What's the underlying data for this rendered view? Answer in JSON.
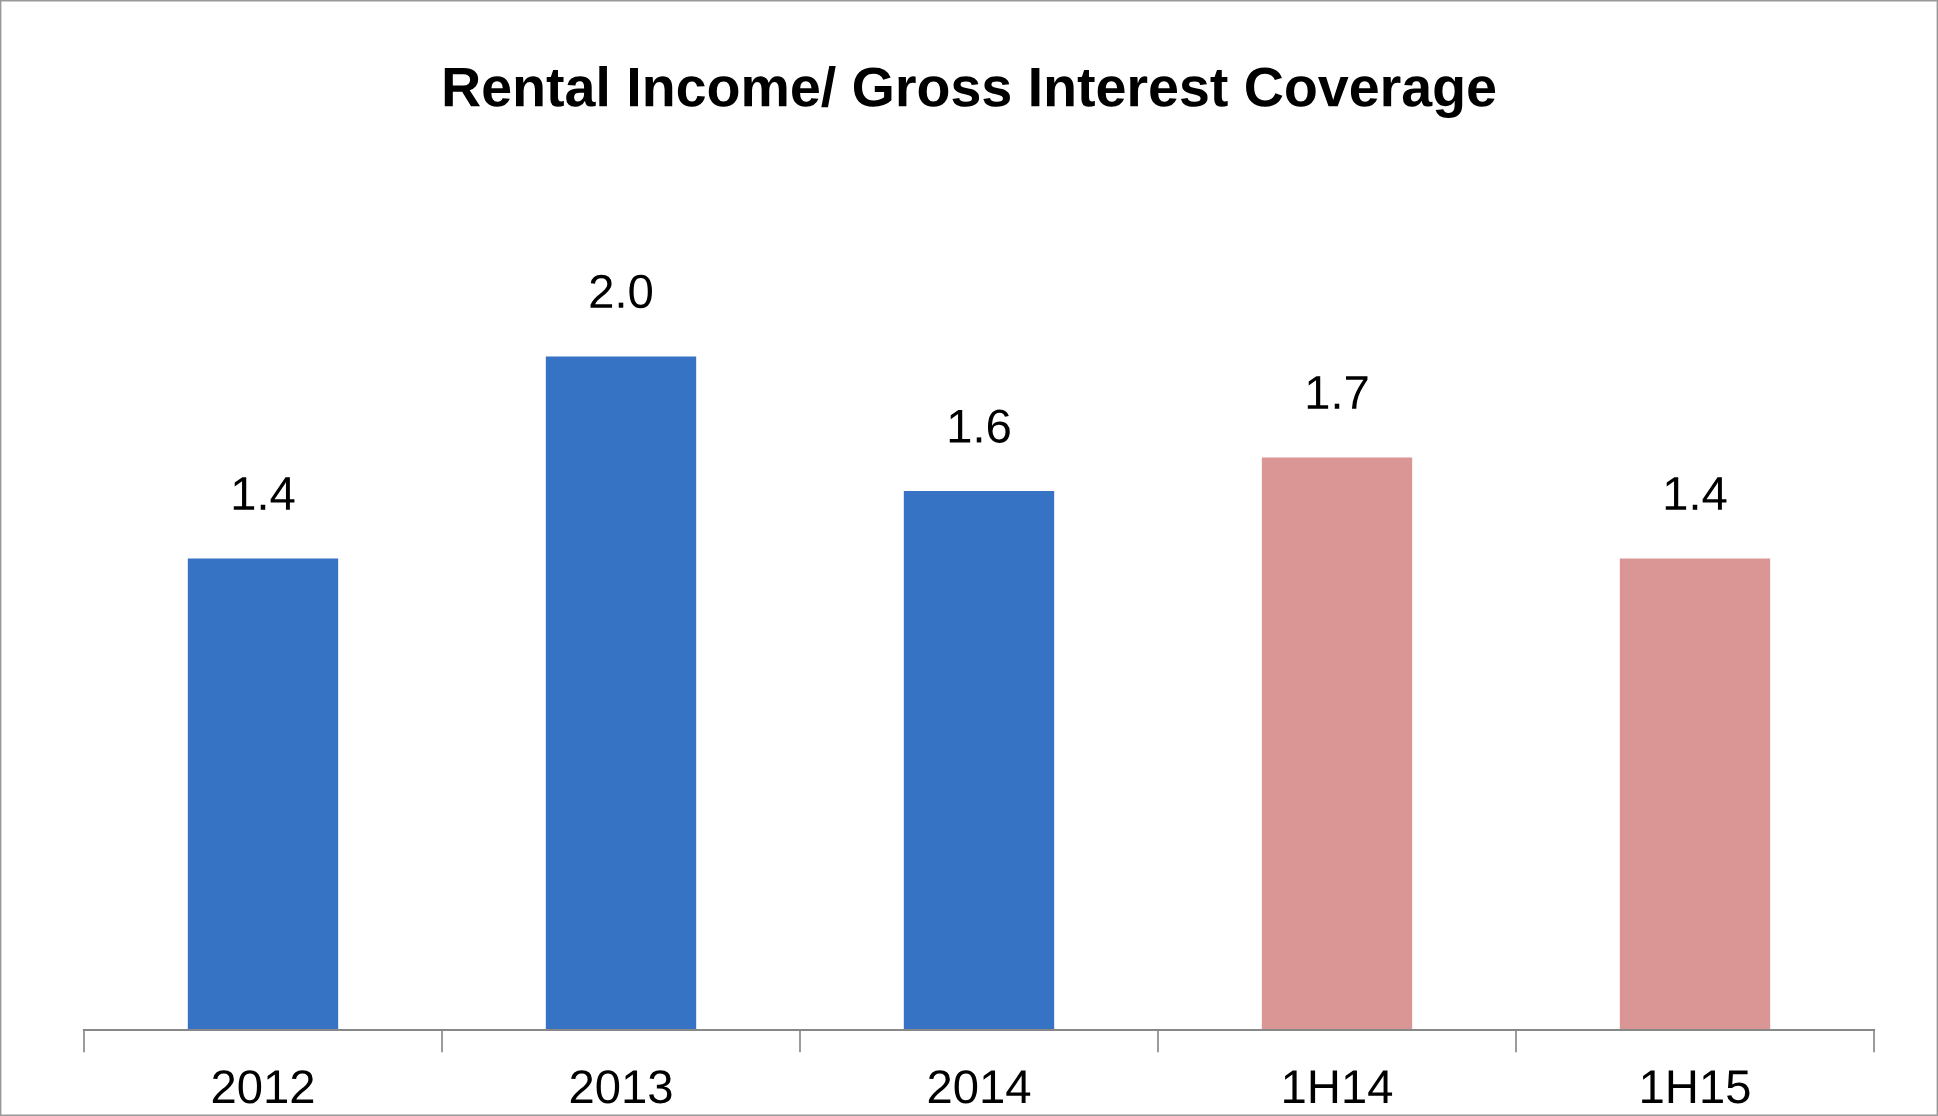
{
  "chart_data": {
    "type": "bar",
    "title": "Rental Income/ Gross Interest Coverage",
    "categories": [
      "2012",
      "2013",
      "2014",
      "1H14",
      "1H15"
    ],
    "values": [
      1.4,
      2.0,
      1.6,
      1.7,
      1.4
    ],
    "value_labels": [
      "1.4",
      "2.0",
      "1.6",
      "1.7",
      "1.4"
    ],
    "colors": [
      "#3673c4",
      "#3673c4",
      "#3673c4",
      "#d99694",
      "#d99694"
    ],
    "grid": false
  }
}
